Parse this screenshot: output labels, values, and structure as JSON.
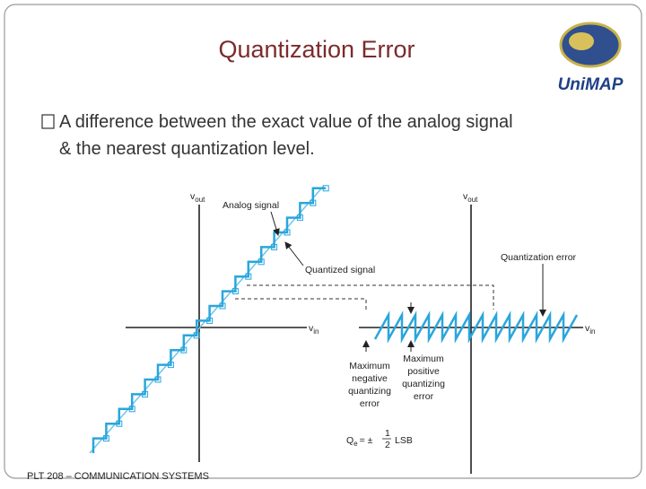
{
  "header": {
    "title": "Quantization Error",
    "logo": "UniMAP"
  },
  "body": {
    "bullet_lines": [
      "A difference between the exact value of the analog signal",
      "& the nearest quantization level."
    ]
  },
  "figure": {
    "v": "v",
    "out": "out",
    "in": "in",
    "analog_signal": "Analog signal",
    "quantized_signal": "Quantized signal",
    "quantization_error": "Quantization error",
    "max_negative": [
      "Maximum",
      "negative",
      "quantizing",
      "error"
    ],
    "max_positive": [
      "Maximum",
      "positive",
      "quantizing",
      "error"
    ],
    "formula": {
      "lhs": "Q",
      "lhs_sub": "e",
      "eq": "= ±",
      "num": "1",
      "den": "2",
      "unit": "LSB"
    }
  },
  "footer": {
    "text": "PLT 208 – COMMUNICATION SYSTEMS"
  }
}
